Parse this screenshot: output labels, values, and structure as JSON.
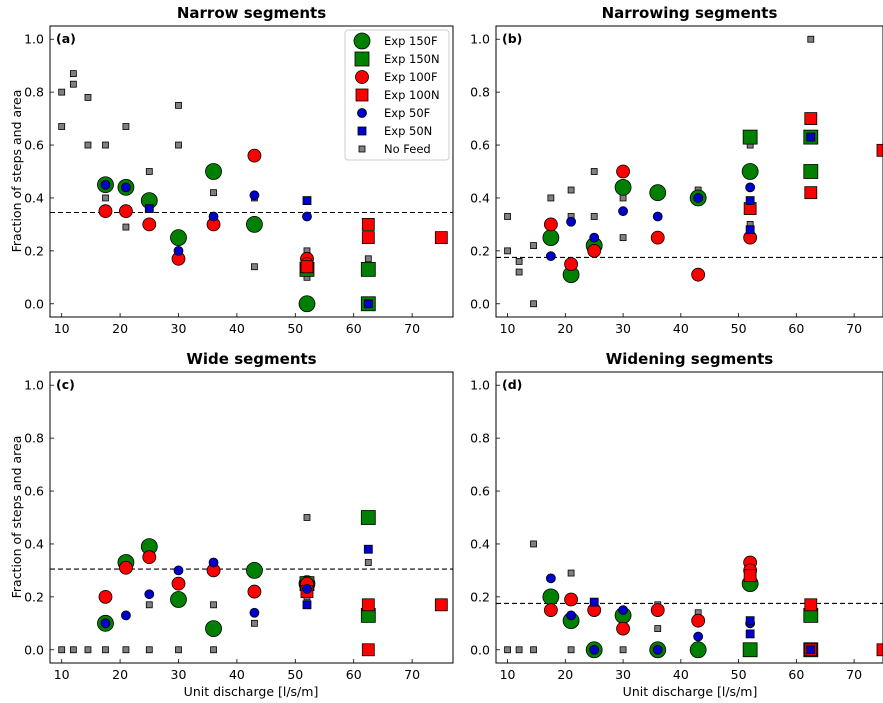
{
  "figure": {
    "ylabel": "Fraction of steps and area",
    "xlabel": "Unit discharge [l/s/m]"
  },
  "legend": {
    "location": "top-right of panel (a)",
    "entries": [
      {
        "key": "e150F",
        "label": "Exp 150F"
      },
      {
        "key": "e150N",
        "label": "Exp 150N"
      },
      {
        "key": "e100F",
        "label": "Exp 100F"
      },
      {
        "key": "e100N",
        "label": "Exp 100N"
      },
      {
        "key": "e50F",
        "label": "Exp 50F"
      },
      {
        "key": "e50N",
        "label": "Exp 50N"
      },
      {
        "key": "nf",
        "label": "No Feed"
      }
    ]
  },
  "series_styles": {
    "e150F": {
      "marker": "circle",
      "size": "large",
      "color": "#008000"
    },
    "e150N": {
      "marker": "square",
      "size": "large",
      "color": "#008000"
    },
    "e100F": {
      "marker": "circle",
      "size": "medium",
      "color": "#ff0000"
    },
    "e100N": {
      "marker": "square",
      "size": "medium",
      "color": "#ff0000"
    },
    "e50F": {
      "marker": "circle",
      "size": "small",
      "color": "#0000cd"
    },
    "e50N": {
      "marker": "square",
      "size": "small",
      "color": "#0000cd"
    },
    "nf": {
      "marker": "square",
      "size": "tiny",
      "color": "#808080"
    }
  },
  "chart_data": [
    {
      "type": "scatter",
      "id": "a",
      "title": "Narrow segments",
      "panel_label": "(a)",
      "xlim": [
        8,
        77
      ],
      "ylim": [
        -0.05,
        1.05
      ],
      "xticks": [
        10,
        20,
        30,
        40,
        50,
        60,
        70
      ],
      "yticks": [
        0.0,
        0.2,
        0.4,
        0.6,
        0.8,
        1.0
      ],
      "grid": false,
      "hline": 0.345,
      "series": [
        {
          "key": "nf",
          "name": "No Feed",
          "points": [
            [
              10,
              0.8
            ],
            [
              10,
              0.67
            ],
            [
              12,
              0.83
            ],
            [
              12,
              0.87
            ],
            [
              14.5,
              0.78
            ],
            [
              14.5,
              0.6
            ],
            [
              17.5,
              0.6
            ],
            [
              17.5,
              0.4
            ],
            [
              21,
              0.67
            ],
            [
              21,
              0.29
            ],
            [
              25,
              0.5
            ],
            [
              30,
              0.75
            ],
            [
              30,
              0.6
            ],
            [
              36,
              0.42
            ],
            [
              36,
              0.33
            ],
            [
              43,
              0.4
            ],
            [
              43,
              0.14
            ],
            [
              52,
              0.2
            ],
            [
              52,
              0.1
            ],
            [
              62.5,
              0.17
            ],
            [
              62.5,
              0.0
            ]
          ]
        },
        {
          "key": "e150F",
          "name": "Exp 150F",
          "points": [
            [
              17.5,
              0.45
            ],
            [
              21,
              0.44
            ],
            [
              25,
              0.39
            ],
            [
              30,
              0.25
            ],
            [
              36,
              0.5
            ],
            [
              43,
              0.3
            ],
            [
              52,
              0.0
            ]
          ]
        },
        {
          "key": "e150N",
          "name": "Exp 150N",
          "points": [
            [
              52,
              0.13
            ],
            [
              62.5,
              0.13
            ],
            [
              62.5,
              0.0
            ]
          ]
        },
        {
          "key": "e100F",
          "name": "Exp 100F",
          "points": [
            [
              17.5,
              0.35
            ],
            [
              21,
              0.35
            ],
            [
              25,
              0.3
            ],
            [
              30,
              0.17
            ],
            [
              36,
              0.3
            ],
            [
              43,
              0.56
            ],
            [
              52,
              0.17
            ],
            [
              52,
              0.15
            ]
          ]
        },
        {
          "key": "e100N",
          "name": "Exp 100N",
          "points": [
            [
              52,
              0.14
            ],
            [
              62.5,
              0.3
            ],
            [
              62.5,
              0.25
            ],
            [
              75,
              0.25
            ]
          ]
        },
        {
          "key": "e50F",
          "name": "Exp 50F",
          "points": [
            [
              17.5,
              0.45
            ],
            [
              21,
              0.44
            ],
            [
              30,
              0.2
            ],
            [
              36,
              0.33
            ],
            [
              43,
              0.41
            ],
            [
              52,
              0.33
            ]
          ]
        },
        {
          "key": "e50N",
          "name": "Exp 50N",
          "points": [
            [
              25,
              0.36
            ],
            [
              52,
              0.39
            ],
            [
              62.5,
              0.0
            ]
          ]
        }
      ]
    },
    {
      "type": "scatter",
      "id": "b",
      "title": "Narrowing segments",
      "panel_label": "(b)",
      "xlim": [
        8,
        75
      ],
      "ylim": [
        -0.05,
        1.05
      ],
      "xticks": [
        10,
        20,
        30,
        40,
        50,
        60,
        70
      ],
      "yticks": [
        0.0,
        0.2,
        0.4,
        0.6,
        0.8,
        1.0
      ],
      "grid": false,
      "hline": 0.175,
      "series": [
        {
          "key": "nf",
          "name": "No Feed",
          "points": [
            [
              10,
              0.33
            ],
            [
              10,
              0.2
            ],
            [
              12,
              0.16
            ],
            [
              12,
              0.12
            ],
            [
              14.5,
              0.22
            ],
            [
              14.5,
              0.0
            ],
            [
              17.5,
              0.4
            ],
            [
              21,
              0.43
            ],
            [
              21,
              0.33
            ],
            [
              25,
              0.5
            ],
            [
              25,
              0.33
            ],
            [
              30,
              0.4
            ],
            [
              30,
              0.25
            ],
            [
              36,
              0.33
            ],
            [
              43,
              0.43
            ],
            [
              52,
              0.6
            ],
            [
              52,
              0.3
            ],
            [
              62.5,
              1.0
            ],
            [
              62.5,
              0.5
            ]
          ]
        },
        {
          "key": "e150F",
          "name": "Exp 150F",
          "points": [
            [
              17.5,
              0.25
            ],
            [
              21,
              0.11
            ],
            [
              25,
              0.22
            ],
            [
              30,
              0.44
            ],
            [
              36,
              0.42
            ],
            [
              43,
              0.4
            ],
            [
              52,
              0.5
            ]
          ]
        },
        {
          "key": "e150N",
          "name": "Exp 150N",
          "points": [
            [
              52,
              0.63
            ],
            [
              62.5,
              0.63
            ],
            [
              62.5,
              0.5
            ]
          ]
        },
        {
          "key": "e100F",
          "name": "Exp 100F",
          "points": [
            [
              17.5,
              0.3
            ],
            [
              21,
              0.15
            ],
            [
              25,
              0.2
            ],
            [
              30,
              0.5
            ],
            [
              36,
              0.25
            ],
            [
              43,
              0.11
            ],
            [
              52,
              0.25
            ]
          ]
        },
        {
          "key": "e100N",
          "name": "Exp 100N",
          "points": [
            [
              52,
              0.36
            ],
            [
              62.5,
              0.7
            ],
            [
              62.5,
              0.42
            ],
            [
              75,
              0.58
            ]
          ]
        },
        {
          "key": "e50F",
          "name": "Exp 50F",
          "points": [
            [
              17.5,
              0.18
            ],
            [
              21,
              0.31
            ],
            [
              25,
              0.25
            ],
            [
              30,
              0.35
            ],
            [
              36,
              0.33
            ],
            [
              43,
              0.4
            ],
            [
              52,
              0.44
            ]
          ]
        },
        {
          "key": "e50N",
          "name": "Exp 50N",
          "points": [
            [
              52,
              0.39
            ],
            [
              52,
              0.28
            ],
            [
              62.5,
              0.63
            ]
          ]
        }
      ]
    },
    {
      "type": "scatter",
      "id": "c",
      "title": "Wide segments",
      "panel_label": "(c)",
      "xlim": [
        8,
        77
      ],
      "ylim": [
        -0.05,
        1.05
      ],
      "xticks": [
        10,
        20,
        30,
        40,
        50,
        60,
        70
      ],
      "yticks": [
        0.0,
        0.2,
        0.4,
        0.6,
        0.8,
        1.0
      ],
      "grid": false,
      "hline": 0.305,
      "series": [
        {
          "key": "nf",
          "name": "No Feed",
          "points": [
            [
              10,
              0.0
            ],
            [
              12,
              0.0
            ],
            [
              14.5,
              0.0
            ],
            [
              17.5,
              0.0
            ],
            [
              21,
              0.0
            ],
            [
              25,
              0.17
            ],
            [
              25,
              0.0
            ],
            [
              30,
              0.0
            ],
            [
              36,
              0.17
            ],
            [
              36,
              0.0
            ],
            [
              43,
              0.29
            ],
            [
              43,
              0.1
            ],
            [
              52,
              0.5
            ],
            [
              52,
              0.25
            ],
            [
              52,
              0.2
            ],
            [
              62.5,
              0.33
            ],
            [
              62.5,
              0.0
            ]
          ]
        },
        {
          "key": "e150F",
          "name": "Exp 150F",
          "points": [
            [
              17.5,
              0.1
            ],
            [
              21,
              0.33
            ],
            [
              25,
              0.39
            ],
            [
              30,
              0.19
            ],
            [
              36,
              0.08
            ],
            [
              43,
              0.3
            ],
            [
              52,
              0.25
            ]
          ]
        },
        {
          "key": "e150N",
          "name": "Exp 150N",
          "points": [
            [
              52,
              0.25
            ],
            [
              62.5,
              0.5
            ],
            [
              62.5,
              0.13
            ]
          ]
        },
        {
          "key": "e100F",
          "name": "Exp 100F",
          "points": [
            [
              17.5,
              0.2
            ],
            [
              21,
              0.31
            ],
            [
              25,
              0.35
            ],
            [
              30,
              0.25
            ],
            [
              36,
              0.3
            ],
            [
              43,
              0.22
            ],
            [
              52,
              0.25
            ]
          ]
        },
        {
          "key": "e100N",
          "name": "Exp 100N",
          "points": [
            [
              52,
              0.22
            ],
            [
              62.5,
              0.17
            ],
            [
              62.5,
              0.0
            ],
            [
              75,
              0.17
            ]
          ]
        },
        {
          "key": "e50F",
          "name": "Exp 50F",
          "points": [
            [
              17.5,
              0.1
            ],
            [
              21,
              0.13
            ],
            [
              25,
              0.21
            ],
            [
              30,
              0.3
            ],
            [
              36,
              0.33
            ],
            [
              43,
              0.14
            ],
            [
              52,
              0.23
            ]
          ]
        },
        {
          "key": "e50N",
          "name": "Exp 50N",
          "points": [
            [
              52,
              0.17
            ],
            [
              62.5,
              0.38
            ]
          ]
        }
      ]
    },
    {
      "type": "scatter",
      "id": "d",
      "title": "Widening segments",
      "panel_label": "(d)",
      "xlim": [
        8,
        75
      ],
      "ylim": [
        -0.05,
        1.05
      ],
      "xticks": [
        10,
        20,
        30,
        40,
        50,
        60,
        70
      ],
      "yticks": [
        0.0,
        0.2,
        0.4,
        0.6,
        0.8,
        1.0
      ],
      "grid": false,
      "hline": 0.175,
      "series": [
        {
          "key": "nf",
          "name": "No Feed",
          "points": [
            [
              10,
              0.0
            ],
            [
              12,
              0.0
            ],
            [
              14.5,
              0.4
            ],
            [
              14.5,
              0.0
            ],
            [
              17.5,
              0.2
            ],
            [
              21,
              0.29
            ],
            [
              21,
              0.0
            ],
            [
              25,
              0.17
            ],
            [
              25,
              0.0
            ],
            [
              30,
              0.0
            ],
            [
              36,
              0.17
            ],
            [
              36,
              0.08
            ],
            [
              43,
              0.14
            ],
            [
              43,
              0.0
            ],
            [
              52,
              0.1
            ],
            [
              52,
              0.0
            ],
            [
              62.5,
              0.0
            ]
          ]
        },
        {
          "key": "e150F",
          "name": "Exp 150F",
          "points": [
            [
              17.5,
              0.2
            ],
            [
              21,
              0.11
            ],
            [
              25,
              0.0
            ],
            [
              30,
              0.13
            ],
            [
              36,
              0.0
            ],
            [
              43,
              0.0
            ],
            [
              52,
              0.25
            ]
          ]
        },
        {
          "key": "e150N",
          "name": "Exp 150N",
          "points": [
            [
              52,
              0.0
            ],
            [
              62.5,
              0.13
            ],
            [
              62.5,
              0.0
            ]
          ]
        },
        {
          "key": "e100F",
          "name": "Exp 100F",
          "points": [
            [
              17.5,
              0.15
            ],
            [
              21,
              0.19
            ],
            [
              25,
              0.15
            ],
            [
              30,
              0.08
            ],
            [
              36,
              0.15
            ],
            [
              43,
              0.11
            ],
            [
              52,
              0.33
            ],
            [
              52,
              0.3
            ]
          ]
        },
        {
          "key": "e100N",
          "name": "Exp 100N",
          "points": [
            [
              52,
              0.28
            ],
            [
              62.5,
              0.17
            ],
            [
              62.5,
              0.0
            ],
            [
              75,
              0.0
            ]
          ]
        },
        {
          "key": "e50F",
          "name": "Exp 50F",
          "points": [
            [
              17.5,
              0.27
            ],
            [
              21,
              0.13
            ],
            [
              25,
              0.0
            ],
            [
              30,
              0.15
            ],
            [
              36,
              0.0
            ],
            [
              43,
              0.05
            ],
            [
              52,
              0.1
            ]
          ]
        },
        {
          "key": "e50N",
          "name": "Exp 50N",
          "points": [
            [
              25,
              0.18
            ],
            [
              52,
              0.11
            ],
            [
              52,
              0.06
            ],
            [
              62.5,
              0.0
            ]
          ]
        }
      ]
    }
  ]
}
